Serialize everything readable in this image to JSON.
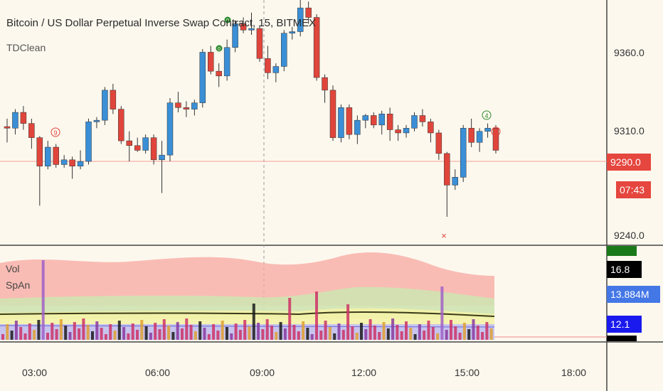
{
  "header": {
    "symbol_title": "Bitcoin / US Dollar Perpetual Inverse Swap Contract, 15, BITMEX",
    "indicator": "TDClean"
  },
  "price_axis": {
    "labels": [
      "9360.0",
      "9310.0",
      "9240.0"
    ]
  },
  "current_price": {
    "value": "9290.0",
    "countdown": "07:43"
  },
  "lower_pane": {
    "labels": [
      "Vol",
      "SpAn"
    ],
    "scale_badges": [
      {
        "text": "16.8",
        "bg": "#000000",
        "fg": "#ffffff"
      },
      {
        "text": "13.884M",
        "bg": "#4477e6",
        "fg": "#ffffff"
      },
      {
        "text": "12.1",
        "bg": "#1a1aee",
        "fg": "#ffffff"
      }
    ]
  },
  "time_axis": {
    "labels": [
      "03:00",
      "06:00",
      "09:00",
      "12:00",
      "15:00",
      "18:00"
    ]
  },
  "markers": {
    "setup_green_top": [
      "0",
      "0"
    ],
    "count_green": "4",
    "count_red": [
      "9",
      "1"
    ],
    "cross": "×"
  },
  "colors": {
    "up": "#3a8fd6",
    "down": "#e0453b",
    "background": "#fdf8ee",
    "price_tag": "#e5463e"
  },
  "chart_data": {
    "type": "candlestick",
    "y_range": [
      9230,
      9385
    ],
    "candles": [
      [
        9305,
        9310,
        9295,
        9304
      ],
      [
        9304,
        9316,
        9300,
        9314
      ],
      [
        9314,
        9318,
        9303,
        9307
      ],
      [
        9307,
        9310,
        9291,
        9298
      ],
      [
        9298,
        9299,
        9255,
        9280
      ],
      [
        9280,
        9296,
        9278,
        9292
      ],
      [
        9292,
        9294,
        9279,
        9281
      ],
      [
        9281,
        9287,
        9279,
        9284
      ],
      [
        9284,
        9286,
        9272,
        9280
      ],
      [
        9280,
        9290,
        9278,
        9283
      ],
      [
        9283,
        9310,
        9281,
        9308
      ],
      [
        9308,
        9311,
        9304,
        9309
      ],
      [
        9309,
        9330,
        9306,
        9328
      ],
      [
        9328,
        9332,
        9313,
        9316
      ],
      [
        9316,
        9318,
        9294,
        9296
      ],
      [
        9296,
        9302,
        9283,
        9293
      ],
      [
        9293,
        9298,
        9289,
        9290
      ],
      [
        9290,
        9300,
        9288,
        9298
      ],
      [
        9298,
        9300,
        9281,
        9284
      ],
      [
        9284,
        9296,
        9263,
        9287
      ],
      [
        9287,
        9323,
        9283,
        9320
      ],
      [
        9320,
        9327,
        9314,
        9317
      ],
      [
        9317,
        9321,
        9311,
        9316
      ],
      [
        9316,
        9322,
        9312,
        9320
      ],
      [
        9320,
        9354,
        9317,
        9352
      ],
      [
        9352,
        9356,
        9338,
        9340
      ],
      [
        9340,
        9345,
        9330,
        9337
      ],
      [
        9337,
        9360,
        9334,
        9355
      ],
      [
        9355,
        9372,
        9352,
        9370
      ],
      [
        9370,
        9374,
        9364,
        9366
      ],
      [
        9366,
        9377,
        9363,
        9367
      ],
      [
        9367,
        9369,
        9346,
        9348
      ],
      [
        9348,
        9356,
        9335,
        9339
      ],
      [
        9339,
        9345,
        9333,
        9343
      ],
      [
        9343,
        9366,
        9340,
        9364
      ],
      [
        9364,
        9368,
        9360,
        9365
      ],
      [
        9365,
        9385,
        9362,
        9380
      ],
      [
        9380,
        9384,
        9370,
        9374
      ],
      [
        9374,
        9376,
        9334,
        9336
      ],
      [
        9336,
        9338,
        9320,
        9328
      ],
      [
        9328,
        9331,
        9296,
        9298
      ],
      [
        9298,
        9319,
        9295,
        9317
      ],
      [
        9317,
        9319,
        9297,
        9300
      ],
      [
        9300,
        9312,
        9294,
        9309
      ],
      [
        9309,
        9313,
        9304,
        9312
      ],
      [
        9312,
        9314,
        9304,
        9306
      ],
      [
        9306,
        9315,
        9300,
        9313
      ],
      [
        9313,
        9317,
        9296,
        9303
      ],
      [
        9303,
        9306,
        9296,
        9301
      ],
      [
        9301,
        9306,
        9298,
        9304
      ],
      [
        9304,
        9314,
        9302,
        9312
      ],
      [
        9312,
        9316,
        9305,
        9308
      ],
      [
        9308,
        9310,
        9295,
        9301
      ],
      [
        9301,
        9303,
        9284,
        9288
      ],
      [
        9288,
        9289,
        9248,
        9268
      ],
      [
        9268,
        9278,
        9265,
        9273
      ],
      [
        9273,
        9306,
        9270,
        9304
      ],
      [
        9304,
        9310,
        9292,
        9295
      ],
      [
        9295,
        9304,
        9289,
        9302
      ],
      [
        9302,
        9307,
        9298,
        9304
      ],
      [
        9304,
        9306,
        9288,
        9290
      ]
    ]
  }
}
